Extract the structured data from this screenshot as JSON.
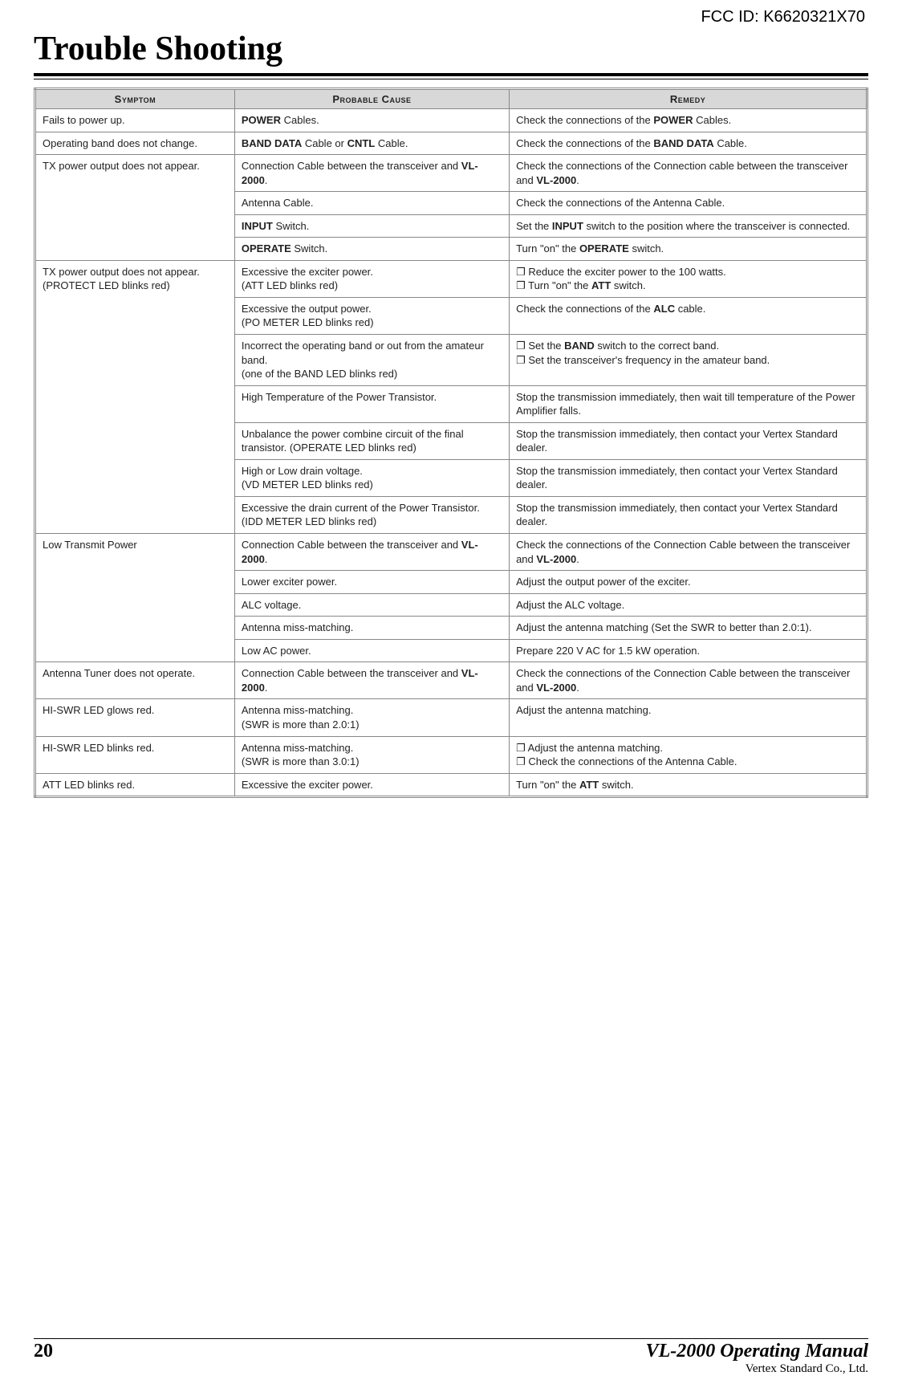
{
  "fcc_id": "FCC ID: K6620321X70",
  "title": "Trouble Shooting",
  "headers": {
    "symptom": "Symptom",
    "cause": "Probable Cause",
    "remedy": "Remedy"
  },
  "rows": [
    {
      "symptom": "Fails to power up.",
      "cause_html": "<b>POWER</b> Cables.",
      "remedy_html": "Check the connections of the <b>POWER</b> Cables."
    },
    {
      "symptom": "Operating band does not change.",
      "cause_html": "<b>BAND DATA</b> Cable or <b>CNTL</b> Cable.",
      "remedy_html": "Check the connections of the <b>BAND DATA</b> Cable."
    },
    {
      "symptom": "TX power output does not appear.",
      "symptom_rowspan": 4,
      "cause_html": "Connection Cable between the transceiver and <b>VL-2000</b>.",
      "remedy_html": "Check the connections of the Connection cable between the transceiver and <b>VL-2000</b>."
    },
    {
      "cause_html": "Antenna Cable.",
      "remedy_html": "Check the connections of the Antenna Cable."
    },
    {
      "cause_html": "<b>INPUT</b> Switch.",
      "remedy_html": "Set the <b>INPUT</b> switch to the position where the transceiver is connected."
    },
    {
      "cause_html": "<b>OPERATE</b> Switch.",
      "remedy_html": "Turn \"on\" the <b>OPERATE</b> switch."
    },
    {
      "symptom": "TX power output does not appear.\n(PROTECT LED blinks red)",
      "symptom_rowspan": 7,
      "cause_html": "Excessive the exciter power.<br>(ATT LED blinks red)",
      "remedy_html": "❐ Reduce the exciter power to the 100 watts.<br>❐ Turn \"on\" the <b>ATT</b> switch."
    },
    {
      "cause_html": "Excessive the output power.<br>(PO METER LED blinks red)",
      "remedy_html": "Check the connections of the <b>ALC</b> cable."
    },
    {
      "cause_html": "Incorrect the operating band or out from the amateur band.<br>(one of the BAND LED blinks red)",
      "remedy_html": "❐ Set the <b>BAND</b> switch to the correct band.<br>❐ Set the transceiver's frequency in the amateur band."
    },
    {
      "cause_html": "High Temperature of the Power Transistor.",
      "remedy_html": "Stop the transmission immediately, then wait till temperature of the Power Amplifier falls."
    },
    {
      "cause_html": "Unbalance the power combine circuit of the final transistor. (OPERATE LED blinks red)",
      "remedy_html": "Stop the transmission immediately, then contact your Vertex Standard dealer."
    },
    {
      "cause_html": "High or Low drain voltage.<br>(VD METER LED blinks red)",
      "remedy_html": "Stop the transmission immediately, then contact your Vertex Standard dealer."
    },
    {
      "cause_html": "Excessive the drain current of the Power Transistor. (IDD METER LED blinks red)",
      "remedy_html": "Stop the transmission immediately, then contact your Vertex Standard dealer."
    },
    {
      "symptom": "Low Transmit Power",
      "symptom_rowspan": 5,
      "cause_html": "Connection Cable between the transceiver and <b>VL-2000</b>.",
      "remedy_html": "Check the connections of the Connection Cable between the transceiver and <b>VL-2000</b>."
    },
    {
      "cause_html": "Lower exciter power.",
      "remedy_html": "Adjust the output power of the exciter."
    },
    {
      "cause_html": "ALC voltage.",
      "remedy_html": "Adjust the ALC voltage."
    },
    {
      "cause_html": "Antenna miss-matching.",
      "remedy_html": "Adjust the antenna matching (Set the SWR to better than 2.0:1)."
    },
    {
      "cause_html": "Low AC power.",
      "remedy_html": "Prepare 220 V AC for 1.5 kW operation."
    },
    {
      "symptom": "Antenna Tuner does not operate.",
      "cause_html": "Connection Cable between the transceiver and <b>VL-2000</b>.",
      "remedy_html": "Check the connections of the Connection Cable between the transceiver and <b>VL-2000</b>."
    },
    {
      "symptom": "HI-SWR LED glows red.",
      "cause_html": "Antenna miss-matching.<br>(SWR is more than 2.0:1)",
      "remedy_html": "Adjust the antenna matching."
    },
    {
      "symptom": "HI-SWR LED blinks red.",
      "cause_html": "Antenna miss-matching.<br>(SWR is more than 3.0:1)",
      "remedy_html": "❐ Adjust the antenna matching.<br>❐ Check the connections of the Antenna Cable."
    },
    {
      "symptom": "ATT LED blinks red.",
      "cause_html": "Excessive the exciter power.",
      "remedy_html": "Turn \"on\" the <b>ATT</b> switch."
    }
  ],
  "footer": {
    "page_number": "20",
    "manual_title": "VL-2000 Operating Manual",
    "company": "Vertex Standard Co., Ltd."
  }
}
